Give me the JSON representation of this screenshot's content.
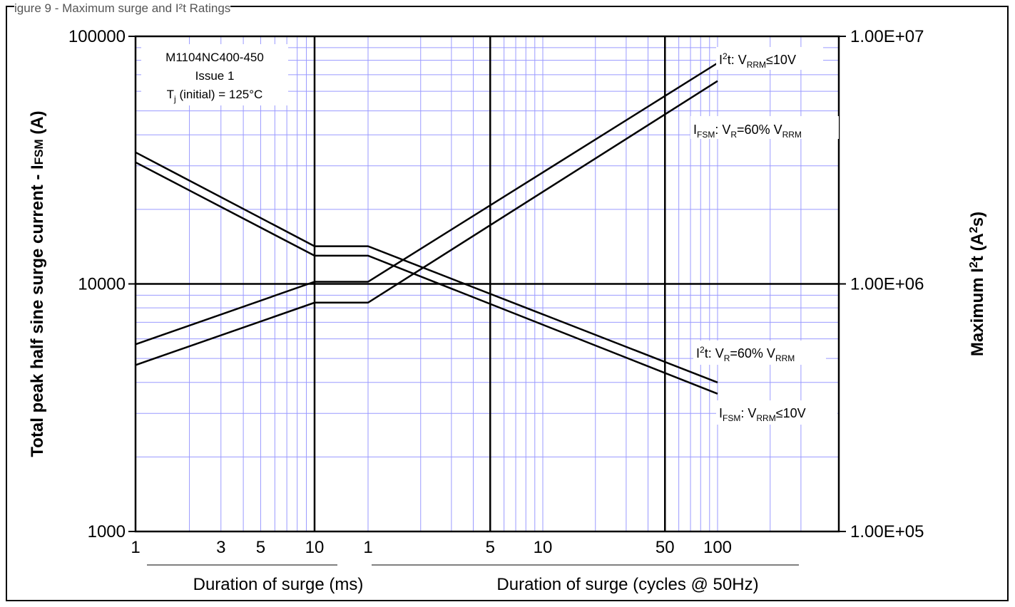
{
  "chart_data": {
    "type": "line",
    "caption": "igure 9 - Maximum surge and I²t Ratings",
    "ylabel_left": "Total peak half sine surge current - I",
    "ylabel_left_sub": "FSM",
    "ylabel_left_unit": " (A)",
    "ylabel_right": "Maximum I",
    "ylabel_right_sup": "2",
    "ylabel_right_unit": "t (A",
    "ylabel_right_sup2": "2",
    "ylabel_right_end": "s)",
    "yscale": "log",
    "ylim_left": [
      1000,
      100000
    ],
    "ylim_right": [
      100000,
      10000000
    ],
    "yticks_left": [
      "100000",
      "10000",
      "1000"
    ],
    "yticks_right": [
      "1.00E+07",
      "1.00E+06",
      "1.00E+05"
    ],
    "xscale": "log (two segments: ms then cycles @ 50Hz)",
    "xticks": [
      "1",
      "3",
      "5",
      "10",
      "1",
      "5",
      "10",
      "50",
      "100"
    ],
    "xlabel_ms": "Duration of surge (ms)",
    "xlabel_cycles": "Duration of surge (cycles @ 50Hz)",
    "info_box": [
      "M1104NC400-450",
      "Issue 1",
      "T(initial) = 125°C"
    ],
    "info_box_tj": "T",
    "info_box_tj_sub": "j",
    "info_box_tj_rest": " (initial) = 125°C",
    "series": [
      {
        "name": "I²t: VRRM≤10V",
        "points": [
          [
            1,
            5700
          ],
          [
            10,
            10200
          ],
          [
            13,
            10200
          ],
          [
            100,
            78000
          ]
        ]
      },
      {
        "name": "IFSM: VR=60% VRRM",
        "points": [
          [
            1,
            31000
          ],
          [
            10,
            13000
          ],
          [
            13,
            13000
          ],
          [
            100,
            3600
          ]
        ]
      },
      {
        "name": "I²t: VR=60% VRRM",
        "points": [
          [
            1,
            4700
          ],
          [
            10,
            8400
          ],
          [
            13,
            8400
          ],
          [
            100,
            66000
          ]
        ]
      },
      {
        "name": "IFSM: VRRM≤10V",
        "points": [
          [
            1,
            34000
          ],
          [
            10,
            14200
          ],
          [
            13,
            14200
          ],
          [
            100,
            4000
          ]
        ]
      }
    ],
    "legend_labels": {
      "s1": {
        "a": "I",
        "sup": "2",
        "b": "t: V",
        "sub": "RRM",
        "c": "≤10V"
      },
      "s2": {
        "a": "I",
        "sub": "FSM",
        "b": ": V",
        "sub2": "R",
        "c": "=60% V",
        "sub3": "RRM"
      },
      "s3": {
        "a": "I",
        "sup": "2",
        "b": "t: V",
        "sub": "R",
        "c": "=60% V",
        "sub2": "RRM"
      },
      "s4": {
        "a": "I",
        "sub": "FSM",
        "b": ": V",
        "sub2": "RRM",
        "c": "≤10V"
      }
    }
  }
}
